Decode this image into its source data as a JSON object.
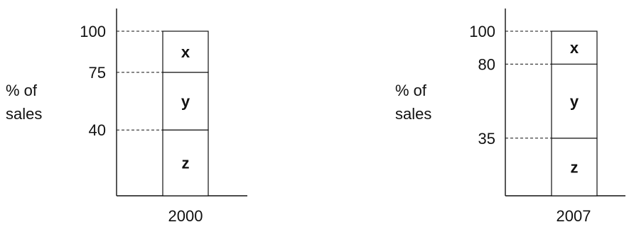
{
  "chart_data": [
    {
      "type": "bar",
      "stacked": true,
      "ylabel_lines": [
        "% of",
        "sales"
      ],
      "category": "2000",
      "ylim": [
        0,
        100
      ],
      "tick_values": [
        100,
        75,
        40
      ],
      "segments": [
        {
          "name": "z",
          "from": 0,
          "to": 40
        },
        {
          "name": "y",
          "from": 40,
          "to": 75
        },
        {
          "name": "x",
          "from": 75,
          "to": 100
        }
      ]
    },
    {
      "type": "bar",
      "stacked": true,
      "ylabel_lines": [
        "% of",
        "sales"
      ],
      "category": "2007",
      "ylim": [
        0,
        100
      ],
      "tick_values": [
        100,
        80,
        35
      ],
      "segments": [
        {
          "name": "z",
          "from": 0,
          "to": 35
        },
        {
          "name": "y",
          "from": 35,
          "to": 80
        },
        {
          "name": "x",
          "from": 80,
          "to": 100
        }
      ]
    }
  ]
}
